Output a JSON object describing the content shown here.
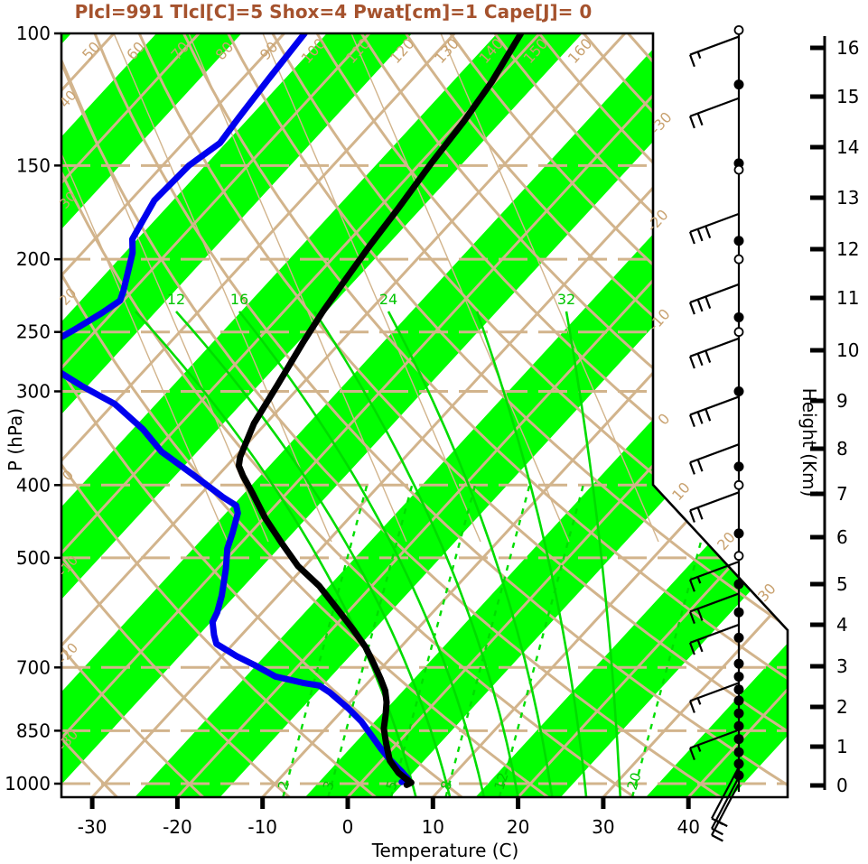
{
  "title": {
    "text": "Plcl=991 Tlcl[C]=5 Shox=4 Pwat[cm]=1 Cape[J]= 0"
  },
  "axes": {
    "pressure": {
      "label": "P (hPa)",
      "ticks": [
        100,
        150,
        200,
        250,
        300,
        400,
        500,
        700,
        850,
        1000
      ]
    },
    "temperature": {
      "label": "Temperature (C)",
      "ticks": [
        -30,
        -20,
        -10,
        0,
        10,
        20,
        30,
        40
      ]
    },
    "height": {
      "label": "Height (Km)",
      "ticks_km": [
        0,
        1,
        2,
        3,
        4,
        5,
        6,
        7,
        8,
        9,
        10,
        11,
        12,
        13,
        14,
        15,
        16
      ]
    }
  },
  "colors": {
    "title": "#a5522d",
    "band_fill": "#00ff00",
    "tan_line": "#d2b48c",
    "green_line": "#00dd00",
    "dewpoint": "#0000ee",
    "temperature": "#000000",
    "frame": "#000000"
  },
  "chart_data": {
    "type": "skewt-logp-sounding",
    "title": "Plcl=991 Tlcl[C]=5 Shox=4 Pwat[cm]=1 Cape[J]= 0",
    "xlabel": "Temperature (C)",
    "ylabel": "P (hPa)",
    "y2label": "Height (Km)",
    "pressure_range_hpa": [
      100,
      1050
    ],
    "green_band_centers_c": [
      -120,
      -100,
      -80,
      -60,
      -40,
      -20,
      0,
      20,
      40
    ],
    "isotherms_c": [
      -110,
      -100,
      -90,
      -80,
      -70,
      -60,
      -50,
      -40,
      -30,
      -20,
      -10,
      0,
      10,
      20,
      30,
      40
    ],
    "isotherm_edge_labels": [
      -30,
      -20,
      -10,
      0,
      10,
      20,
      30
    ],
    "dry_adiabats_c": [
      -30,
      -20,
      -10,
      0,
      10,
      20,
      30,
      40,
      50,
      60,
      70,
      80,
      90,
      100,
      110,
      120,
      130,
      140,
      150,
      160,
      170,
      180,
      190,
      200
    ],
    "dry_adiabat_top_labels": [
      50,
      60,
      70,
      80,
      90,
      100,
      110,
      120,
      130,
      140,
      150,
      160
    ],
    "dry_adiabat_left_labels": [
      40,
      30,
      20,
      0,
      -10,
      -20,
      -30
    ],
    "moist_adiabats_c": [
      8,
      12,
      16,
      20,
      24,
      28,
      32
    ],
    "moist_adiabat_labels": [
      12,
      16,
      24,
      32
    ],
    "mixing_ratio_gkg": [
      2,
      3,
      5,
      8,
      12,
      20
    ],
    "mixing_ratio_t_at_bottom_c": [
      -7.6,
      -2.3,
      5.1,
      11.5,
      17.8,
      33.4
    ],
    "mixing_ratio_labelled": [
      2,
      3,
      5,
      8,
      12,
      20
    ],
    "temperature_profile_p_t": [
      [
        100,
        -62.2
      ],
      [
        116,
        -60.4
      ],
      [
        131,
        -59.4
      ],
      [
        149,
        -58.7
      ],
      [
        171,
        -57.7
      ],
      [
        192,
        -57.0
      ],
      [
        213,
        -56.2
      ],
      [
        235,
        -55.4
      ],
      [
        258,
        -54.4
      ],
      [
        294,
        -52.8
      ],
      [
        331,
        -51.4
      ],
      [
        367,
        -49.4
      ],
      [
        377,
        -48.6
      ],
      [
        389,
        -47.0
      ],
      [
        411,
        -43.9
      ],
      [
        443,
        -39.8
      ],
      [
        478,
        -35.2
      ],
      [
        513,
        -30.8
      ],
      [
        545,
        -26.2
      ],
      [
        582,
        -21.9
      ],
      [
        623,
        -17.5
      ],
      [
        658,
        -14.1
      ],
      [
        693,
        -11.3
      ],
      [
        724,
        -9.0
      ],
      [
        752,
        -7.1
      ],
      [
        779,
        -5.7
      ],
      [
        811,
        -4.4
      ],
      [
        844,
        -3.2
      ],
      [
        884,
        -1.3
      ],
      [
        932,
        1.0
      ],
      [
        967,
        3.3
      ],
      [
        986,
        4.9
      ],
      [
        997,
        5.9
      ],
      [
        1004,
        5.6
      ]
    ],
    "dewpoint_profile_p_t": [
      [
        100,
        -87.6
      ],
      [
        115,
        -86.9
      ],
      [
        130,
        -86.2
      ],
      [
        140,
        -85.7
      ],
      [
        150,
        -86.9
      ],
      [
        167,
        -87.2
      ],
      [
        188,
        -85.6
      ],
      [
        196,
        -84.1
      ],
      [
        220,
        -81.1
      ],
      [
        227,
        -80.4
      ],
      [
        236,
        -81.2
      ],
      [
        249,
        -82.7
      ],
      [
        256,
        -83.6
      ],
      [
        265,
        -88.0
      ],
      [
        273,
        -88.5
      ],
      [
        283,
        -79.7
      ],
      [
        295,
        -75.7
      ],
      [
        312,
        -69.8
      ],
      [
        337,
        -63.8
      ],
      [
        361,
        -59.2
      ],
      [
        387,
        -53.1
      ],
      [
        415,
        -47.1
      ],
      [
        426,
        -44.6
      ],
      [
        436,
        -43.6
      ],
      [
        463,
        -42.1
      ],
      [
        486,
        -41.0
      ],
      [
        517,
        -39.0
      ],
      [
        561,
        -36.6
      ],
      [
        591,
        -35.3
      ],
      [
        609,
        -34.8
      ],
      [
        634,
        -33.2
      ],
      [
        651,
        -32.0
      ],
      [
        676,
        -28.3
      ],
      [
        695,
        -25.2
      ],
      [
        720,
        -21.5
      ],
      [
        734,
        -17.6
      ],
      [
        740,
        -15.4
      ],
      [
        756,
        -13.4
      ],
      [
        793,
        -9.6
      ],
      [
        826,
        -6.6
      ],
      [
        861,
        -4.0
      ],
      [
        896,
        -1.5
      ],
      [
        928,
        0.8
      ],
      [
        951,
        2.6
      ],
      [
        964,
        3.6
      ],
      [
        974,
        4.3
      ],
      [
        984,
        5.0
      ],
      [
        995,
        4.7
      ]
    ],
    "height_km_vs_ypx": [
      [
        0,
        870
      ],
      [
        1,
        827
      ],
      [
        2,
        783
      ],
      [
        3,
        738
      ],
      [
        4,
        692
      ],
      [
        5,
        647
      ],
      [
        6,
        595
      ],
      [
        7,
        547
      ],
      [
        8,
        497
      ],
      [
        9,
        444
      ],
      [
        10,
        388
      ],
      [
        11,
        330
      ],
      [
        12,
        276
      ],
      [
        13,
        219
      ],
      [
        14,
        163
      ],
      [
        15,
        107
      ],
      [
        16,
        53
      ]
    ],
    "wind": {
      "markers": [
        {
          "p": 99,
          "t": "circle"
        },
        {
          "p": 117,
          "t": "dot"
        },
        {
          "p": 149,
          "t": "dot"
        },
        {
          "p": 152,
          "t": "circle"
        },
        {
          "p": 189,
          "t": "dot"
        },
        {
          "p": 200,
          "t": "circle"
        },
        {
          "p": 239,
          "t": "dot"
        },
        {
          "p": 250,
          "t": "circle"
        },
        {
          "p": 300,
          "t": "dot"
        },
        {
          "p": 378,
          "t": "dot"
        },
        {
          "p": 400,
          "t": "circle"
        },
        {
          "p": 464,
          "t": "dot"
        },
        {
          "p": 497,
          "t": "circle"
        },
        {
          "p": 542,
          "t": "dot"
        },
        {
          "p": 591,
          "t": "dot"
        },
        {
          "p": 639,
          "t": "dot"
        },
        {
          "p": 692,
          "t": "dot"
        },
        {
          "p": 720,
          "t": "dot"
        },
        {
          "p": 749,
          "t": "dot"
        },
        {
          "p": 775,
          "t": "dot"
        },
        {
          "p": 806,
          "t": "dot"
        },
        {
          "p": 838,
          "t": "dot"
        },
        {
          "p": 872,
          "t": "dot"
        },
        {
          "p": 908,
          "t": "dot"
        },
        {
          "p": 941,
          "t": "dot"
        },
        {
          "p": 975,
          "t": "dot"
        }
      ],
      "barbs": [
        {
          "p": 101,
          "ticks": 1,
          "half": true,
          "dir": "up"
        },
        {
          "p": 122,
          "ticks": 2,
          "half": false,
          "dir": "up"
        },
        {
          "p": 174,
          "ticks": 3,
          "half": false,
          "dir": "up"
        },
        {
          "p": 216,
          "ticks": 3,
          "half": false,
          "dir": "up"
        },
        {
          "p": 255,
          "ticks": 3,
          "half": false,
          "dir": "up"
        },
        {
          "p": 305,
          "ticks": 3,
          "half": false,
          "dir": "up"
        },
        {
          "p": 353,
          "ticks": 2,
          "half": false,
          "dir": "up"
        },
        {
          "p": 409,
          "ticks": 2,
          "half": false,
          "dir": "up"
        },
        {
          "p": 506,
          "ticks": 1,
          "half": true,
          "dir": "up"
        },
        {
          "p": 558,
          "ticks": 2,
          "half": false,
          "dir": "up"
        },
        {
          "p": 614,
          "ticks": 2,
          "half": false,
          "dir": "up"
        },
        {
          "p": 734,
          "ticks": 1,
          "half": true,
          "dir": "up"
        },
        {
          "p": 848,
          "ticks": 1,
          "half": true,
          "dir": "up"
        },
        {
          "p": 950,
          "ticks": 1,
          "half": false,
          "dir": "down"
        },
        {
          "p": 980,
          "ticks": 2,
          "half": false,
          "dir": "down"
        },
        {
          "p": 1000,
          "ticks": 1,
          "half": false,
          "dir": "down"
        }
      ]
    }
  }
}
